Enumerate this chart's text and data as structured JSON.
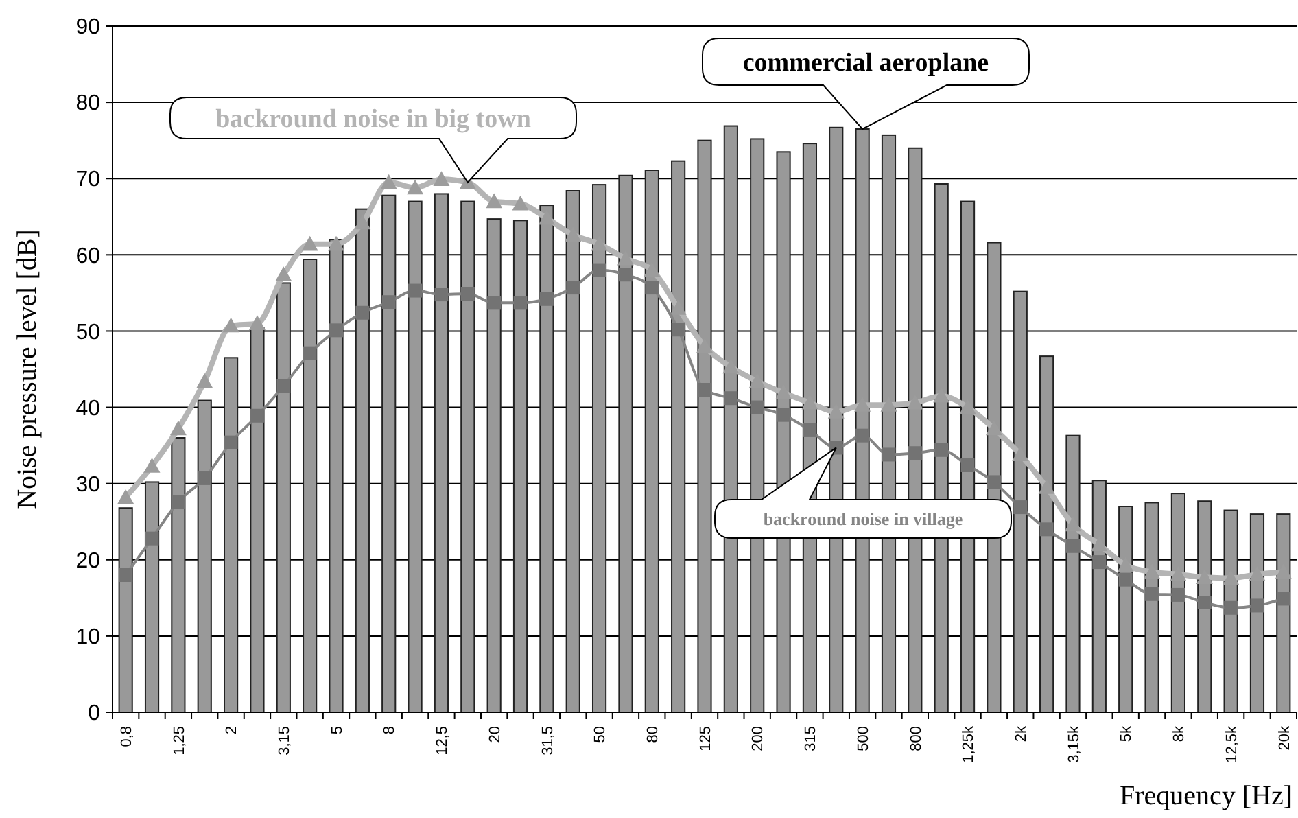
{
  "chart_data": {
    "type": "bar",
    "xlabel": "Frequency [Hz]",
    "ylabel": "Noise pressure level [dB]",
    "categories": [
      "0,8",
      null,
      "1,25",
      null,
      "2",
      null,
      "3,15",
      null,
      "5",
      null,
      "8",
      null,
      "12,5",
      null,
      "20",
      null,
      "31,5",
      null,
      "50",
      null,
      "80",
      null,
      "125",
      null,
      "200",
      null,
      "315",
      null,
      "500",
      null,
      "800",
      null,
      "1,25k",
      null,
      "2k",
      null,
      "3,15k",
      null,
      "5k",
      null,
      "8k",
      null,
      "12,5k",
      null,
      "20k"
    ],
    "series": [
      {
        "name": "commercial aeroplane",
        "color": "#999999",
        "values": [
          26.8,
          30.2,
          36,
          40.9,
          46.5,
          50.4,
          56.3,
          59.4,
          62,
          66,
          67.8,
          67,
          68,
          67,
          64.7,
          64.5,
          66.5,
          68.4,
          69.2,
          70.4,
          71.1,
          72.3,
          75,
          76.9,
          75.2,
          73.5,
          74.6,
          76.7,
          76.5,
          75.7,
          74,
          69.3,
          67,
          61.6,
          55.2,
          46.7,
          36.3,
          30.4,
          27,
          27.5,
          28.7,
          27.7,
          26.5,
          26,
          26
        ]
      },
      {
        "name": "backround noise in big town",
        "type": "line",
        "color": "#b4b4b4",
        "marker": "triangle",
        "values": [
          28.2,
          32.3,
          37.2,
          43.4,
          50.7,
          51,
          57.4,
          61.4,
          61.4,
          64.2,
          69.5,
          68.8,
          69.9,
          69.5,
          67,
          66.7,
          64.8,
          62.6,
          61.4,
          59.5,
          58,
          53,
          48,
          45.3,
          43.4,
          41.9,
          40.6,
          39.4,
          40.3,
          40.3,
          40.6,
          41.5,
          40,
          37.2,
          33.8,
          29.5,
          24.6,
          22,
          19.3,
          18.4,
          18.1,
          17.7,
          17.6,
          18.1,
          18.4
        ]
      },
      {
        "name": "backround noise in village",
        "type": "line",
        "color": "#858585",
        "marker": "square",
        "values": [
          18,
          22.8,
          27.6,
          30.7,
          35.4,
          38.9,
          42.8,
          47.1,
          50.1,
          52.4,
          53.8,
          55.3,
          54.8,
          54.9,
          53.7,
          53.7,
          54.2,
          55.7,
          58,
          57.4,
          55.7,
          50.2,
          42.3,
          41.2,
          40,
          39,
          37,
          34.7,
          36.3,
          33.8,
          34,
          34.4,
          32.4,
          30.2,
          26.9,
          24,
          21.8,
          19.7,
          17.4,
          15.5,
          15.4,
          14.4,
          13.7,
          14,
          14.9
        ]
      }
    ],
    "ylim": [
      0,
      90
    ],
    "yticks": [
      0,
      10,
      20,
      30,
      40,
      50,
      60,
      70,
      80,
      90
    ],
    "grid": "y"
  }
}
